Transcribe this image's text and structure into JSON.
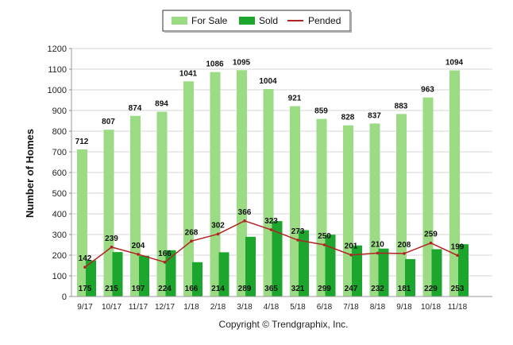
{
  "chart_data": {
    "type": "bar",
    "categories": [
      "9/17",
      "10/17",
      "11/17",
      "12/17",
      "1/18",
      "2/18",
      "3/18",
      "4/18",
      "5/18",
      "6/18",
      "7/18",
      "8/18",
      "9/18",
      "10/18",
      "11/18"
    ],
    "series": [
      {
        "name": "For Sale",
        "type": "bar",
        "color": "#9ADB84",
        "values": [
          712,
          807,
          874,
          894,
          1041,
          1086,
          1095,
          1004,
          921,
          859,
          828,
          837,
          883,
          963,
          1094
        ]
      },
      {
        "name": "Sold",
        "type": "bar",
        "color": "#1CA62E",
        "values": [
          175,
          215,
          197,
          224,
          166,
          214,
          289,
          365,
          321,
          299,
          247,
          232,
          181,
          229,
          253
        ]
      },
      {
        "name": "Pended",
        "type": "line",
        "color": "#B22222",
        "values": [
          142,
          239,
          204,
          166,
          268,
          302,
          366,
          323,
          273,
          250,
          201,
          210,
          208,
          259,
          199
        ]
      }
    ],
    "ylabel": "Number of Homes",
    "xlabel": "",
    "ylim": [
      0,
      1200
    ],
    "yticks": [
      0,
      100,
      200,
      300,
      400,
      500,
      600,
      700,
      800,
      900,
      1000,
      1100,
      1200
    ],
    "grid": true,
    "legend_position": "top-center",
    "credit": "Copyright © Trendgraphix, Inc."
  }
}
